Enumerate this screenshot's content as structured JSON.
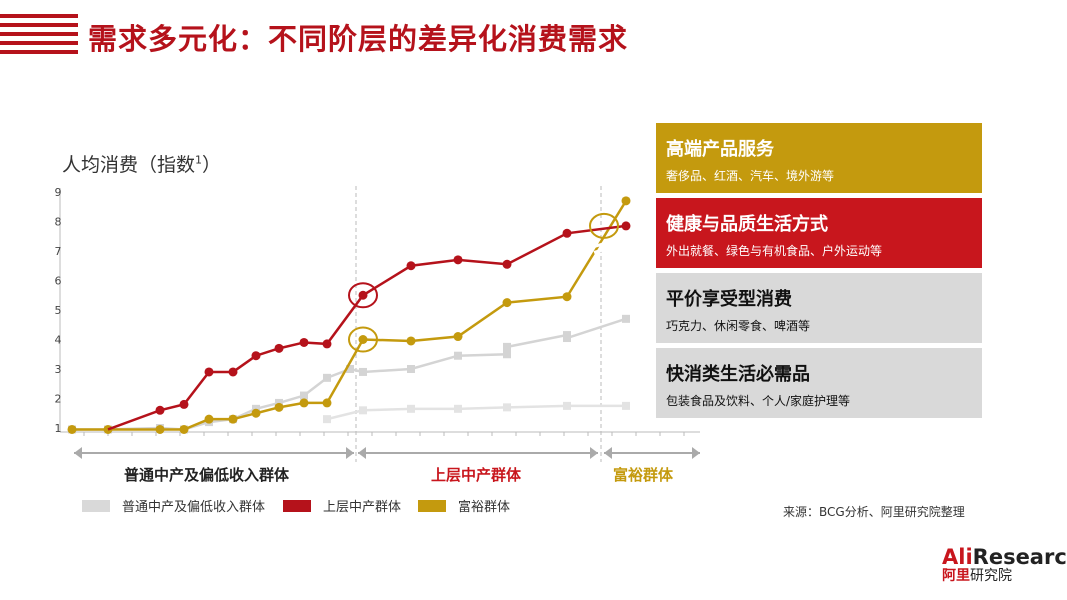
{
  "title": "需求多元化：不同阶层的差异化消费需求",
  "chart_data": {
    "type": "line",
    "ylabel": "人均消费（指数",
    "ylabel_superscript": "1",
    "ylabel_close": "）",
    "ylim": [
      1,
      9
    ],
    "yticks": [
      "1",
      "2",
      "3",
      "4",
      "5",
      "6",
      "7",
      "8",
      "9"
    ],
    "x_segments": [
      {
        "label": "普通中产及偏低收入群体",
        "color": "#222222"
      },
      {
        "label": "上层中产群体",
        "color": "#c8161d"
      },
      {
        "label": "富裕群体",
        "color": "#c49a0e"
      }
    ],
    "series": [
      {
        "name": "普通中产及偏低收入群体",
        "color": "#d4d4d4",
        "points": [
          [
            0,
            0.95
          ],
          [
            1,
            0.95
          ],
          [
            2,
            1.0
          ],
          [
            3,
            0.95
          ],
          [
            4,
            1.2
          ],
          [
            5,
            1.3
          ],
          [
            6,
            1.65
          ],
          [
            7,
            1.85
          ],
          [
            8,
            2.1
          ],
          [
            9,
            2.7
          ],
          [
            10,
            3.0
          ],
          [
            11,
            2.9
          ],
          [
            12,
            3.0
          ],
          [
            13,
            3.45
          ],
          [
            14,
            3.5
          ],
          [
            15,
            3.75
          ],
          [
            16,
            4.15
          ],
          [
            17,
            4.05
          ],
          [
            18,
            4.7
          ]
        ]
      },
      {
        "name": "普通中产及偏低收入群体",
        "color": "#e3e3e3",
        "points": [
          [
            11,
            1.3
          ],
          [
            12,
            1.6
          ],
          [
            14,
            1.65
          ],
          [
            16,
            1.65
          ],
          [
            18,
            1.7
          ],
          [
            20,
            1.75
          ],
          [
            23,
            1.75
          ]
        ]
      },
      {
        "name": "上层中产群体",
        "color": "#b5121b",
        "points": [
          [
            0,
            0.95
          ],
          [
            1,
            0.95
          ],
          [
            2,
            1.6
          ],
          [
            3,
            1.8
          ],
          [
            4,
            2.9
          ],
          [
            5,
            2.9
          ],
          [
            6,
            3.45
          ],
          [
            7,
            3.7
          ],
          [
            8,
            3.9
          ],
          [
            9,
            3.85
          ],
          [
            10,
            5.5
          ],
          [
            11,
            6.5
          ],
          [
            12,
            6.7
          ],
          [
            13,
            6.55
          ],
          [
            14,
            7.6
          ],
          [
            15,
            7.85
          ]
        ]
      },
      {
        "name": "富裕群体",
        "color": "#c49a0e",
        "points": [
          [
            0,
            0.95
          ],
          [
            1,
            0.95
          ],
          [
            2,
            0.95
          ],
          [
            3,
            0.95
          ],
          [
            4,
            1.3
          ],
          [
            5,
            1.3
          ],
          [
            6,
            1.5
          ],
          [
            7,
            1.7
          ],
          [
            8,
            1.85
          ],
          [
            9,
            1.85
          ],
          [
            10,
            4.0
          ],
          [
            11,
            3.95
          ],
          [
            12,
            4.1
          ],
          [
            13,
            5.25
          ],
          [
            14,
            5.45
          ],
          [
            15,
            8.7
          ]
        ]
      }
    ],
    "legend": [
      {
        "label": "普通中产及偏低收入群体",
        "color": "#d9d9d9"
      },
      {
        "label": "上层中产群体",
        "color": "#b5121b"
      },
      {
        "label": "富裕群体",
        "color": "#c49a0e"
      }
    ]
  },
  "categories": [
    {
      "title": "高端产品服务",
      "sub": "奢侈品、红酒、汽车、境外游等",
      "bg": "#c49a0e",
      "fg": "#ffffff"
    },
    {
      "title": "健康与品质生活方式",
      "sub": "外出就餐、绿色与有机食品、户外运动等",
      "bg": "#c8161d",
      "fg": "#ffffff"
    },
    {
      "title": "平价享受型消费",
      "sub": "巧克力、休闲零食、啤酒等",
      "bg": "#d9d9d9",
      "fg": "#111111"
    },
    {
      "title": "快消类生活必需品",
      "sub": "包装食品及饮料、个人/家庭护理等",
      "bg": "#d9d9d9",
      "fg": "#111111"
    }
  ],
  "source": "来源：BCG分析、阿里研究院整理",
  "logo": {
    "ali": "Ali",
    "research": "Research",
    "cn_red": "阿里",
    "cn_black": "研究院"
  }
}
